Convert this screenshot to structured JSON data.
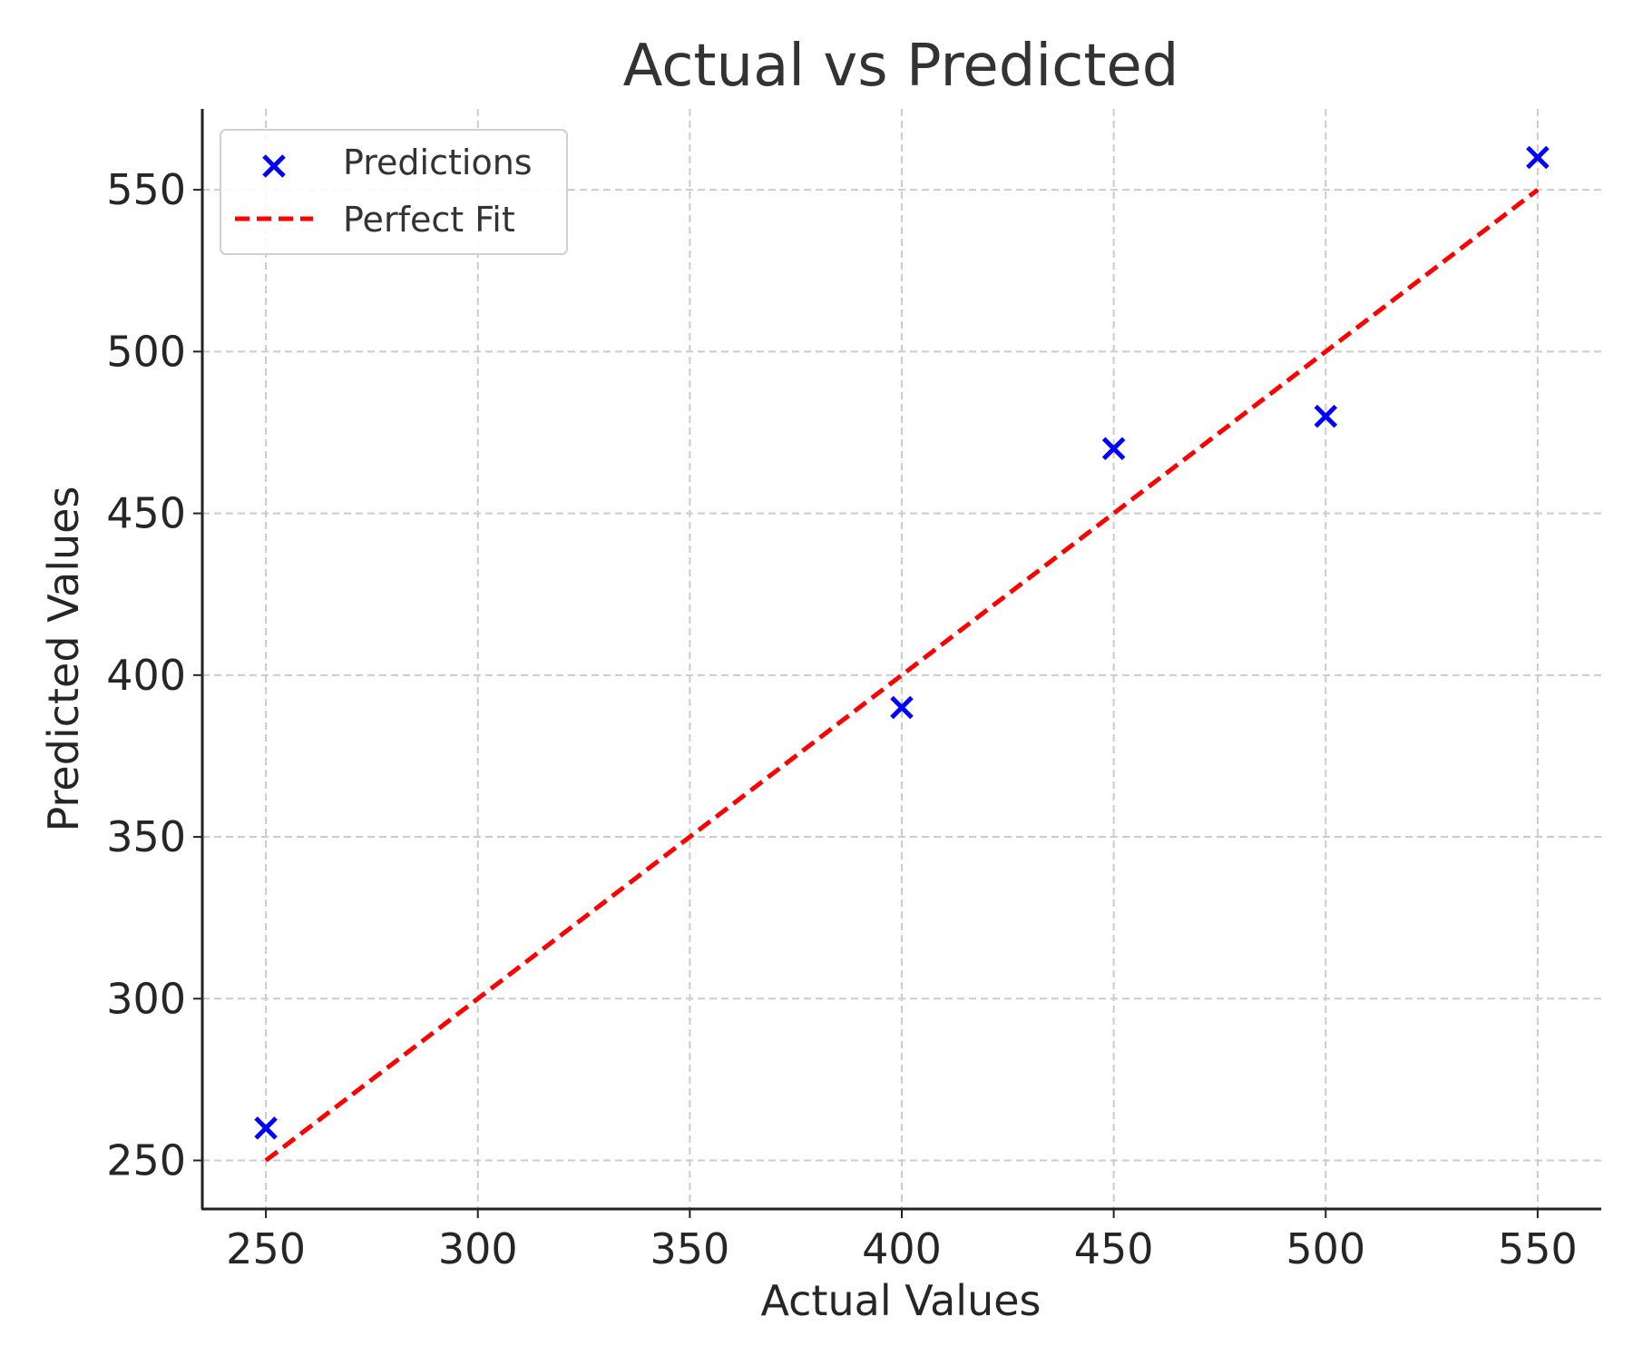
{
  "chart_data": {
    "type": "scatter",
    "title": "Actual vs Predicted",
    "xlabel": "Actual Values",
    "ylabel": "Predicted Values",
    "xlim": [
      235,
      565
    ],
    "ylim": [
      235,
      575
    ],
    "x_ticks": [
      250,
      300,
      350,
      400,
      450,
      500,
      550
    ],
    "y_ticks": [
      250,
      300,
      350,
      400,
      450,
      500,
      550
    ],
    "grid": true,
    "legend_position": "top-left",
    "series": [
      {
        "name": "Predictions",
        "kind": "scatter",
        "marker": "x",
        "color": "#0000ff",
        "x": [
          250,
          400,
          450,
          500,
          550
        ],
        "y": [
          260,
          390,
          470,
          480,
          560
        ]
      },
      {
        "name": "Perfect Fit",
        "kind": "line",
        "style": "dashed",
        "color": "#ff0000",
        "x": [
          250,
          550
        ],
        "y": [
          250,
          550
        ]
      }
    ]
  }
}
